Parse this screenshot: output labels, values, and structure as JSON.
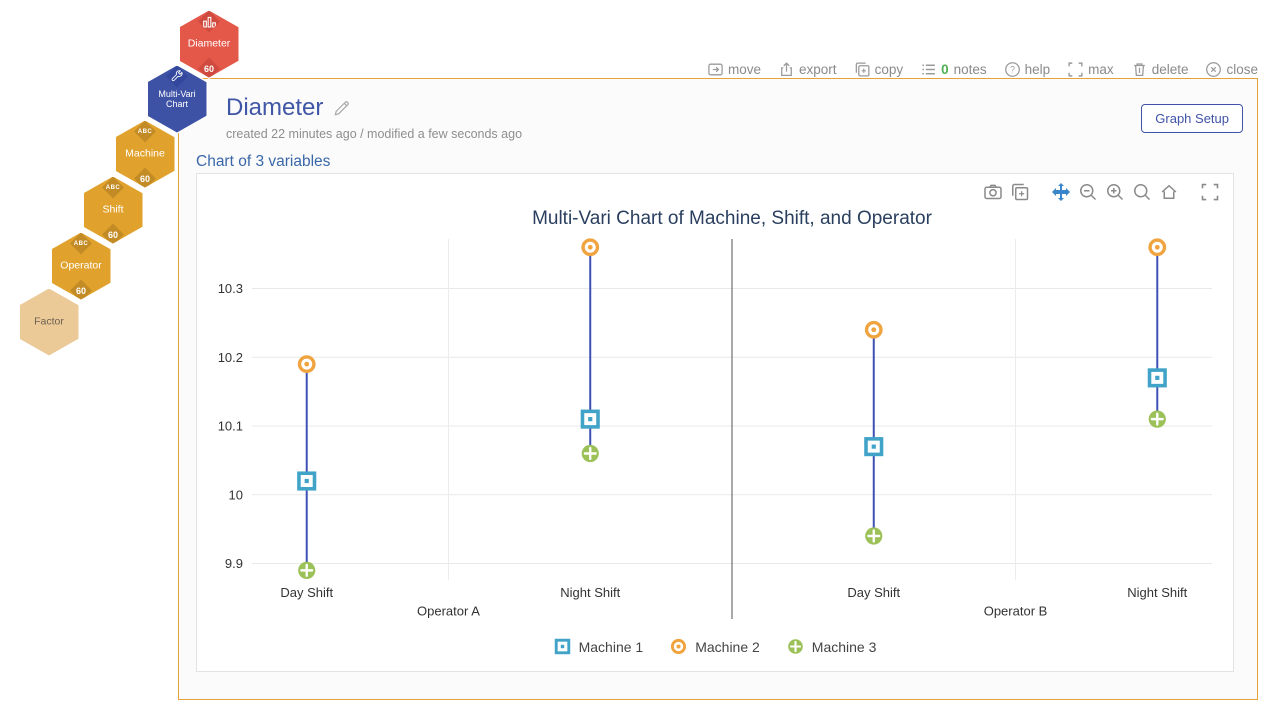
{
  "window_toolbar": {
    "items": [
      {
        "label": "move",
        "icon": "move-icon"
      },
      {
        "label": "export",
        "icon": "export-icon"
      },
      {
        "label": "copy",
        "icon": "copy-icon"
      },
      {
        "count": "0",
        "label": "notes",
        "icon": "notes-icon",
        "count_color": "#4caf50"
      },
      {
        "label": "help",
        "icon": "help-icon"
      },
      {
        "label": "max",
        "icon": "maximize-icon"
      },
      {
        "label": "delete",
        "icon": "trash-icon"
      },
      {
        "label": "close",
        "icon": "close-icon"
      }
    ]
  },
  "workflow": {
    "nodes": [
      {
        "label": "Diameter",
        "badge": "60",
        "icon": "bar-chart-icon",
        "color": "#e4584a",
        "accent": "#cf4a3f"
      },
      {
        "label": "Multi-Vari Chart",
        "icon": "wrench-icon",
        "color": "#3d52a5",
        "accent": "#33479c"
      },
      {
        "label": "Machine",
        "badge": "60",
        "icon": "abc-icon",
        "icon_text": "ABC",
        "color": "#e0a22d",
        "accent": "#c38b25"
      },
      {
        "label": "Shift",
        "badge": "60",
        "icon": "abc-icon",
        "icon_text": "ABC",
        "color": "#e0a22d",
        "accent": "#c38b25"
      },
      {
        "label": "Operator",
        "badge": "60",
        "icon": "abc-icon",
        "icon_text": "ABC",
        "color": "#e0a22d",
        "accent": "#c38b25"
      },
      {
        "label": "Factor",
        "color": "#ecca98",
        "accent": "#ecca98",
        "label_color": "#6d6150"
      }
    ]
  },
  "header": {
    "title": "Diameter",
    "edit_icon": "pencil-icon",
    "subtitle": "created 22 minutes ago / modified a few seconds ago",
    "graph_setup_label": "Graph Setup"
  },
  "section": {
    "label": "Chart of 3 variables"
  },
  "chart_card": {
    "modebar_icons": [
      "camera-icon",
      "copy-icon",
      "pan-icon",
      "zoom-out-icon",
      "zoom-in-icon",
      "zoom-icon",
      "home-icon",
      "fullscreen-icon"
    ],
    "active_tool": "pan",
    "active_color": "#3b86c8"
  },
  "chart_data": {
    "type": "multi-vari line+scatter",
    "title": "Multi-Vari Chart of Machine, Shift, and Operator",
    "title_color": "#2a3f5f",
    "ylim": [
      9.876,
      10.372
    ],
    "y_ticks": [
      "9.9",
      "10",
      "10.1",
      "10.2",
      "10.3"
    ],
    "y_tick_values": [
      9.9,
      10.0,
      10.1,
      10.2,
      10.3
    ],
    "groups": [
      {
        "label": "Operator A",
        "shifts": [
          "Day Shift",
          "Night Shift"
        ]
      },
      {
        "label": "Operator B",
        "shifts": [
          "Day Shift",
          "Night Shift"
        ]
      }
    ],
    "categories": [
      "Day Shift",
      "Night Shift",
      "Day Shift",
      "Night Shift"
    ],
    "series": [
      {
        "name": "Machine 1",
        "marker": "square-open-dot",
        "color": "#41a3c8",
        "values": [
          10.02,
          10.11,
          10.07,
          10.17
        ]
      },
      {
        "name": "Machine 2",
        "marker": "circle-open-dot",
        "color": "#f0a43f",
        "values": [
          10.19,
          10.36,
          10.24,
          10.36
        ]
      },
      {
        "name": "Machine 3",
        "marker": "circle-cross",
        "color": "#9bc158",
        "values": [
          9.89,
          10.06,
          9.94,
          10.11
        ]
      }
    ],
    "line_color": "#3f51b5",
    "grid": true,
    "legend_position": "bottom"
  }
}
